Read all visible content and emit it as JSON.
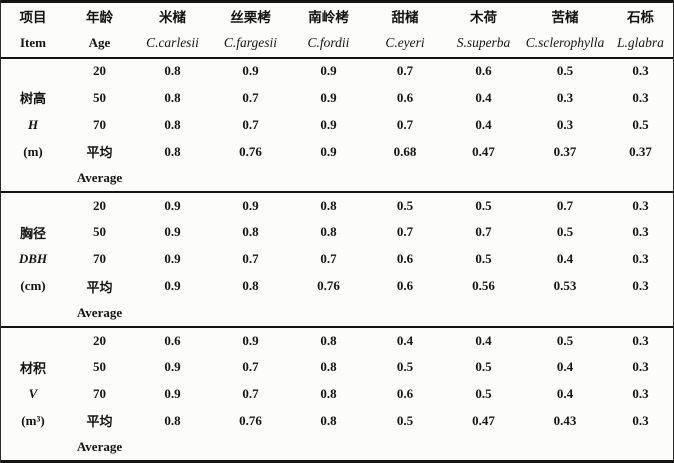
{
  "header": {
    "item_zh": "项目",
    "item_en": "Item",
    "age_zh": "年龄",
    "age_en": "Age",
    "species": [
      {
        "zh": "米槠",
        "la": "C.carlesii"
      },
      {
        "zh": "丝栗栲",
        "la": "C.fargesii"
      },
      {
        "zh": "南岭栲",
        "la": "C.fordii"
      },
      {
        "zh": "甜槠",
        "la": "C.eyeri"
      },
      {
        "zh": "木荷",
        "la": "S.superba"
      },
      {
        "zh": "苦槠",
        "la": "C.sclerophylla"
      },
      {
        "zh": "石栎",
        "la": "L.glabra"
      }
    ]
  },
  "sections": [
    {
      "item": {
        "zh": "树高",
        "sym": "H",
        "unit": "(m)"
      },
      "avg_en": "Average",
      "rows": [
        {
          "age": "20",
          "v": [
            "0.8",
            "0.9",
            "0.9",
            "0.7",
            "0.6",
            "0.5",
            "0.3"
          ]
        },
        {
          "age": "50",
          "v": [
            "0.8",
            "0.7",
            "0.9",
            "0.6",
            "0.4",
            "0.3",
            "0.3"
          ]
        },
        {
          "age": "70",
          "v": [
            "0.8",
            "0.7",
            "0.9",
            "0.7",
            "0.4",
            "0.3",
            "0.5"
          ]
        },
        {
          "age": "平均",
          "v": [
            "0.8",
            "0.76",
            "0.9",
            "0.68",
            "0.47",
            "0.37",
            "0.37"
          ]
        }
      ]
    },
    {
      "item": {
        "zh": "胸径",
        "sym": "DBH",
        "unit": "(cm)"
      },
      "avg_en": "Average",
      "rows": [
        {
          "age": "20",
          "v": [
            "0.9",
            "0.9",
            "0.8",
            "0.5",
            "0.5",
            "0.7",
            "0.3"
          ]
        },
        {
          "age": "50",
          "v": [
            "0.9",
            "0.8",
            "0.8",
            "0.7",
            "0.7",
            "0.5",
            "0.3"
          ]
        },
        {
          "age": "70",
          "v": [
            "0.9",
            "0.7",
            "0.7",
            "0.6",
            "0.5",
            "0.4",
            "0.3"
          ]
        },
        {
          "age": "平均",
          "v": [
            "0.9",
            "0.8",
            "0.76",
            "0.6",
            "0.56",
            "0.53",
            "0.3"
          ]
        }
      ]
    },
    {
      "item": {
        "zh": "材积",
        "sym": "V",
        "unit": "(m³)"
      },
      "avg_en": "Average",
      "rows": [
        {
          "age": "20",
          "v": [
            "0.6",
            "0.9",
            "0.8",
            "0.4",
            "0.4",
            "0.5",
            "0.3"
          ]
        },
        {
          "age": "50",
          "v": [
            "0.9",
            "0.7",
            "0.8",
            "0.5",
            "0.5",
            "0.4",
            "0.3"
          ]
        },
        {
          "age": "70",
          "v": [
            "0.9",
            "0.7",
            "0.8",
            "0.6",
            "0.5",
            "0.4",
            "0.3"
          ]
        },
        {
          "age": "平均",
          "v": [
            "0.8",
            "0.76",
            "0.8",
            "0.5",
            "0.47",
            "0.43",
            "0.3"
          ]
        }
      ]
    }
  ]
}
